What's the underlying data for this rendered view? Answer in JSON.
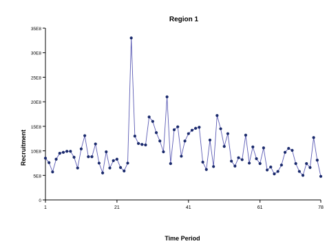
{
  "chart_data": {
    "type": "line",
    "title": "Region 1",
    "xlabel": "Time Period",
    "ylabel": "Recruitment",
    "xlim": [
      1,
      78
    ],
    "ylim": [
      0,
      3.5
    ],
    "x_ticks": [
      1,
      21,
      41,
      61,
      78
    ],
    "y_ticks": [
      {
        "value": 0,
        "label": "0"
      },
      {
        "value": 0.5,
        "label": "5E8"
      },
      {
        "value": 1.0,
        "label": "10E8"
      },
      {
        "value": 1.5,
        "label": "15E8"
      },
      {
        "value": 2.0,
        "label": "20E8"
      },
      {
        "value": 2.5,
        "label": "25E8"
      },
      {
        "value": 3.0,
        "label": "30E8"
      },
      {
        "value": 3.5,
        "label": "35E8"
      }
    ],
    "grid": false,
    "legend": "none",
    "series": [
      {
        "color": "#1a2a6c",
        "x": [
          1,
          2,
          3,
          4,
          5,
          6,
          7,
          8,
          9,
          10,
          11,
          12,
          13,
          14,
          15,
          16,
          17,
          18,
          19,
          20,
          21,
          22,
          23,
          24,
          25,
          26,
          27,
          28,
          29,
          30,
          31,
          32,
          33,
          34,
          35,
          36,
          37,
          38,
          39,
          40,
          41,
          42,
          43,
          44,
          45,
          46,
          47,
          48,
          49,
          50,
          51,
          52,
          53,
          54,
          55,
          56,
          57,
          58,
          59,
          60,
          61,
          62,
          63,
          64,
          65,
          66,
          67,
          68,
          69,
          70,
          71,
          72,
          73,
          74,
          75,
          76,
          77,
          78
        ],
        "values": [
          0.85,
          0.76,
          0.57,
          0.83,
          0.95,
          0.97,
          0.99,
          0.99,
          0.87,
          0.65,
          1.04,
          1.31,
          0.88,
          0.88,
          1.14,
          0.75,
          0.55,
          0.98,
          0.65,
          0.8,
          0.83,
          0.66,
          0.59,
          0.75,
          3.3,
          1.3,
          1.15,
          1.13,
          1.12,
          1.69,
          1.6,
          1.37,
          1.2,
          0.98,
          2.1,
          0.74,
          1.43,
          1.49,
          0.89,
          1.2,
          1.35,
          1.42,
          1.46,
          1.48,
          0.77,
          0.62,
          1.22,
          0.68,
          1.72,
          1.45,
          1.09,
          1.35,
          0.79,
          0.69,
          0.86,
          0.82,
          1.32,
          0.75,
          1.08,
          0.84,
          0.74,
          1.06,
          0.61,
          0.67,
          0.53,
          0.58,
          0.71,
          0.97,
          1.05,
          1.01,
          0.74,
          0.58,
          0.5,
          0.74,
          0.66,
          1.27,
          0.81,
          0.48
        ]
      }
    ]
  }
}
